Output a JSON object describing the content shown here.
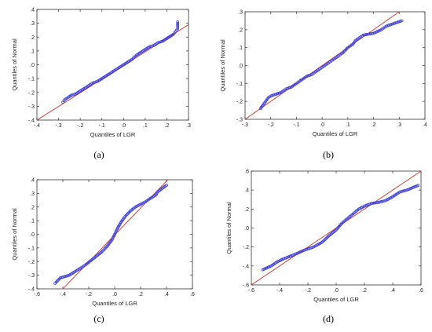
{
  "colors": {
    "line": "#d0453a",
    "points": "#3a3ad8",
    "axes": "#333333"
  },
  "chart_data": [
    {
      "type": "scatter",
      "caption": "(a)",
      "xlabel": "Quantiles of LGR",
      "ylabel": "Quantiles of Normal",
      "xlim": [
        -0.4,
        0.3
      ],
      "ylim": [
        -0.4,
        0.4
      ],
      "xticks": [
        -0.4,
        -0.3,
        -0.2,
        -0.1,
        0.0,
        0.1,
        0.2,
        0.3
      ],
      "yticks": [
        -0.4,
        -0.3,
        -0.2,
        -0.1,
        0.0,
        0.1,
        0.2,
        0.3,
        0.4
      ],
      "xtick_labels": [
        "-.4",
        "-.3",
        "-.2",
        "-.1",
        ".0",
        ".1",
        ".2",
        ".3"
      ],
      "ytick_labels": [
        ".4",
        ".3",
        ".2",
        ".1",
        ".0",
        "-.1",
        "-.2",
        "-.3",
        "-.4"
      ],
      "reference_line": [
        [
          -0.4,
          -0.4
        ],
        [
          0.3,
          0.29
        ]
      ],
      "points": [
        [
          -0.28,
          -0.27
        ],
        [
          -0.27,
          -0.25
        ],
        [
          -0.25,
          -0.23
        ],
        [
          -0.24,
          -0.22
        ],
        [
          -0.22,
          -0.21
        ],
        [
          -0.2,
          -0.19
        ],
        [
          -0.18,
          -0.17
        ],
        [
          -0.16,
          -0.15
        ],
        [
          -0.14,
          -0.13
        ],
        [
          -0.12,
          -0.12
        ],
        [
          -0.1,
          -0.1
        ],
        [
          -0.08,
          -0.08
        ],
        [
          -0.06,
          -0.06
        ],
        [
          -0.04,
          -0.04
        ],
        [
          -0.02,
          -0.02
        ],
        [
          0.0,
          0.0
        ],
        [
          0.02,
          0.02
        ],
        [
          0.04,
          0.04
        ],
        [
          0.06,
          0.07
        ],
        [
          0.08,
          0.09
        ],
        [
          0.1,
          0.11
        ],
        [
          0.12,
          0.13
        ],
        [
          0.14,
          0.14
        ],
        [
          0.16,
          0.16
        ],
        [
          0.18,
          0.17
        ],
        [
          0.2,
          0.19
        ],
        [
          0.21,
          0.2
        ],
        [
          0.22,
          0.21
        ],
        [
          0.23,
          0.22
        ],
        [
          0.24,
          0.24
        ],
        [
          0.25,
          0.26
        ],
        [
          0.25,
          0.31
        ]
      ]
    },
    {
      "type": "scatter",
      "caption": "(b)",
      "xlabel": "Quantiles of LGR",
      "ylabel": "Quantiles of Normal",
      "xlim": [
        -0.3,
        0.4
      ],
      "ylim": [
        -0.3,
        0.3
      ],
      "xticks": [
        -0.3,
        -0.2,
        -0.1,
        0.0,
        0.1,
        0.2,
        0.3,
        0.4
      ],
      "yticks": [
        -0.3,
        -0.2,
        -0.1,
        0.0,
        0.1,
        0.2,
        0.3
      ],
      "xtick_labels": [
        "-.3",
        "-.2",
        "-.1",
        ".0",
        ".1",
        ".2",
        ".3",
        ".4"
      ],
      "ytick_labels": [
        ".3",
        ".2",
        ".1",
        ".0",
        "-.1",
        "-.2",
        "-.3"
      ],
      "reference_line": [
        [
          -0.3,
          -0.3
        ],
        [
          0.3,
          0.3
        ]
      ],
      "points": [
        [
          -0.24,
          -0.24
        ],
        [
          -0.23,
          -0.22
        ],
        [
          -0.22,
          -0.2
        ],
        [
          -0.21,
          -0.18
        ],
        [
          -0.2,
          -0.17
        ],
        [
          -0.18,
          -0.16
        ],
        [
          -0.16,
          -0.15
        ],
        [
          -0.14,
          -0.13
        ],
        [
          -0.12,
          -0.12
        ],
        [
          -0.1,
          -0.1
        ],
        [
          -0.08,
          -0.08
        ],
        [
          -0.06,
          -0.06
        ],
        [
          -0.04,
          -0.05
        ],
        [
          -0.02,
          -0.03
        ],
        [
          0.0,
          -0.01
        ],
        [
          0.02,
          0.01
        ],
        [
          0.04,
          0.03
        ],
        [
          0.06,
          0.05
        ],
        [
          0.08,
          0.07
        ],
        [
          0.1,
          0.1
        ],
        [
          0.12,
          0.12
        ],
        [
          0.13,
          0.14
        ],
        [
          0.14,
          0.15
        ],
        [
          0.16,
          0.17
        ],
        [
          0.2,
          0.18
        ],
        [
          0.23,
          0.2
        ],
        [
          0.25,
          0.22
        ],
        [
          0.31,
          0.25
        ]
      ]
    },
    {
      "type": "scatter",
      "caption": "(c)",
      "xlabel": "Quantiles of LGR",
      "ylabel": "Quantiles of Normal",
      "xlim": [
        -0.6,
        0.6
      ],
      "ylim": [
        -0.4,
        0.4
      ],
      "xticks": [
        -0.6,
        -0.4,
        -0.2,
        0.0,
        0.2,
        0.4,
        0.6
      ],
      "yticks": [
        -0.4,
        -0.3,
        -0.2,
        -0.1,
        0.0,
        0.1,
        0.2,
        0.3,
        0.4
      ],
      "xtick_labels": [
        "-.6",
        "-.4",
        "-.2",
        ".0",
        ".2",
        ".4",
        ".6"
      ],
      "ytick_labels": [
        ".4",
        ".3",
        ".2",
        ".1",
        ".0",
        "-.1",
        "-.2",
        "-.3",
        "-.4"
      ],
      "reference_line": [
        [
          -0.4,
          -0.4
        ],
        [
          0.41,
          0.4
        ]
      ],
      "points": [
        [
          -0.46,
          -0.36
        ],
        [
          -0.42,
          -0.32
        ],
        [
          -0.35,
          -0.3
        ],
        [
          -0.3,
          -0.27
        ],
        [
          -0.25,
          -0.24
        ],
        [
          -0.22,
          -0.22
        ],
        [
          -0.18,
          -0.19
        ],
        [
          -0.14,
          -0.16
        ],
        [
          -0.1,
          -0.13
        ],
        [
          -0.06,
          -0.09
        ],
        [
          -0.02,
          -0.04
        ],
        [
          0.0,
          0.0
        ],
        [
          0.02,
          0.04
        ],
        [
          0.05,
          0.09
        ],
        [
          0.08,
          0.13
        ],
        [
          0.12,
          0.17
        ],
        [
          0.16,
          0.2
        ],
        [
          0.2,
          0.22
        ],
        [
          0.24,
          0.24
        ],
        [
          0.27,
          0.26
        ],
        [
          0.32,
          0.29
        ],
        [
          0.33,
          0.31
        ],
        [
          0.4,
          0.36
        ]
      ]
    },
    {
      "type": "scatter",
      "caption": "(d)",
      "xlabel": "Quantiles of LGR",
      "ylabel": "Quantiles of Normal",
      "xlim": [
        -0.6,
        0.6
      ],
      "ylim": [
        -0.6,
        0.6
      ],
      "xticks": [
        -0.6,
        -0.4,
        -0.2,
        0.0,
        0.2,
        0.4,
        0.6
      ],
      "yticks": [
        -0.6,
        -0.4,
        -0.2,
        0.0,
        0.2,
        0.4,
        0.6
      ],
      "xtick_labels": [
        "-.6",
        "-.4",
        "-.2",
        ".0",
        ".2",
        ".4",
        ".6"
      ],
      "ytick_labels": [
        ".6",
        ".4",
        ".2",
        ".0",
        "-.2",
        "-.4",
        "-.6"
      ],
      "reference_line": [
        [
          -0.6,
          -0.6
        ],
        [
          0.6,
          0.6
        ]
      ],
      "points": [
        [
          -0.52,
          -0.44
        ],
        [
          -0.46,
          -0.4
        ],
        [
          -0.42,
          -0.36
        ],
        [
          -0.38,
          -0.33
        ],
        [
          -0.33,
          -0.3
        ],
        [
          -0.28,
          -0.27
        ],
        [
          -0.22,
          -0.23
        ],
        [
          -0.16,
          -0.2
        ],
        [
          -0.1,
          -0.15
        ],
        [
          -0.05,
          -0.08
        ],
        [
          0.0,
          -0.02
        ],
        [
          0.04,
          0.05
        ],
        [
          0.08,
          0.1
        ],
        [
          0.12,
          0.15
        ],
        [
          0.16,
          0.2
        ],
        [
          0.2,
          0.23
        ],
        [
          0.25,
          0.26
        ],
        [
          0.3,
          0.27
        ],
        [
          0.35,
          0.29
        ],
        [
          0.4,
          0.33
        ],
        [
          0.45,
          0.38
        ],
        [
          0.5,
          0.4
        ],
        [
          0.58,
          0.45
        ]
      ]
    }
  ]
}
